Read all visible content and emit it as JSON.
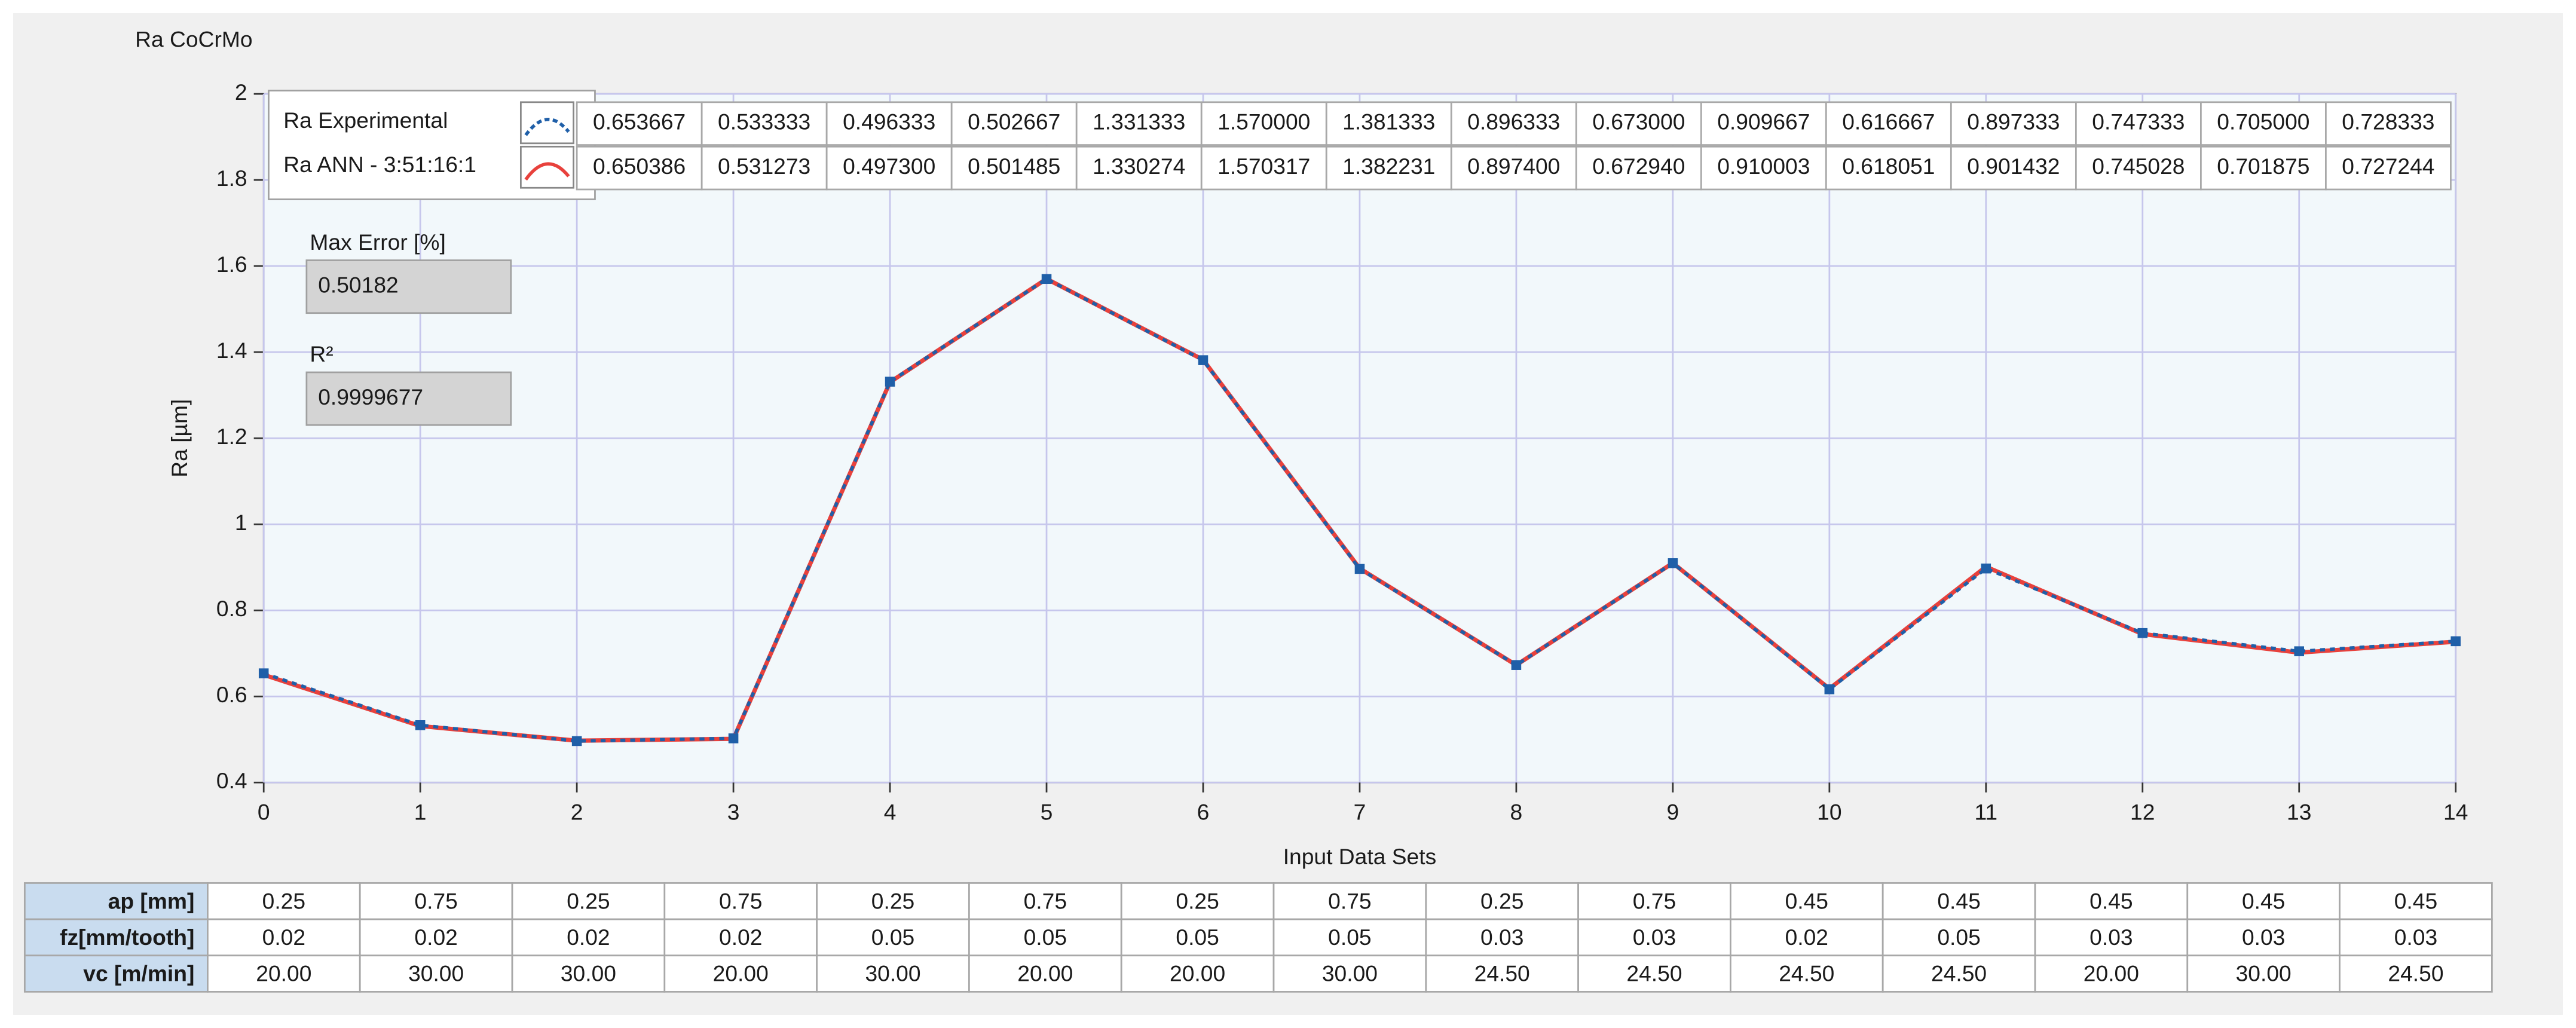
{
  "chart_data": {
    "type": "line",
    "title": "Ra CoCrMo",
    "x_label": "Input Data Sets",
    "y_label": "Ra [µm]",
    "x": [
      0,
      1,
      2,
      3,
      4,
      5,
      6,
      7,
      8,
      9,
      10,
      11,
      12,
      13,
      14
    ],
    "series": [
      {
        "name": "Ra Experimental",
        "color": "#1f5fa8",
        "values": [
          0.653667,
          0.533333,
          0.496333,
          0.502667,
          1.331333,
          1.57,
          1.381333,
          0.896333,
          0.673,
          0.909667,
          0.616667,
          0.897333,
          0.747333,
          0.705,
          0.728333
        ],
        "value_labels": [
          "0.653667",
          "0.533333",
          "0.496333",
          "0.502667",
          "1.331333",
          "1.570000",
          "1.381333",
          "0.896333",
          "0.673000",
          "0.909667",
          "0.616667",
          "0.897333",
          "0.747333",
          "0.705000",
          "0.728333"
        ]
      },
      {
        "name": "Ra ANN - 3:51:16:1",
        "color": "#e8413c",
        "values": [
          0.650386,
          0.531273,
          0.4973,
          0.501485,
          1.330274,
          1.570317,
          1.382231,
          0.8974,
          0.67294,
          0.910003,
          0.618051,
          0.901432,
          0.745028,
          0.701875,
          0.727244
        ],
        "value_labels": [
          "0.650386",
          "0.531273",
          "0.497300",
          "0.501485",
          "1.330274",
          "1.570317",
          "1.382231",
          "0.897400",
          "0.672940",
          "0.910003",
          "0.618051",
          "0.901432",
          "0.745028",
          "0.701875",
          "0.727244"
        ]
      }
    ],
    "xlim": [
      0,
      14
    ],
    "xticks": [
      0,
      1,
      2,
      3,
      4,
      5,
      6,
      7,
      8,
      9,
      10,
      11,
      12,
      13,
      14
    ],
    "ylim": [
      0.4,
      2
    ],
    "yticks": [
      0.4,
      0.6,
      0.8,
      1,
      1.2,
      1.4,
      1.6,
      1.8,
      2
    ],
    "grid": true
  },
  "indicators": [
    {
      "label": "Max Error [%]",
      "value": "0.50182"
    },
    {
      "label": "R²",
      "value": "0.9999677"
    }
  ],
  "input_table": {
    "rows": [
      {
        "label": "ap [mm]",
        "values": [
          "0.25",
          "0.75",
          "0.25",
          "0.75",
          "0.25",
          "0.75",
          "0.25",
          "0.75",
          "0.25",
          "0.75",
          "0.45",
          "0.45",
          "0.45",
          "0.45",
          "0.45"
        ]
      },
      {
        "label": "fz[mm/tooth]",
        "values": [
          "0.02",
          "0.02",
          "0.02",
          "0.02",
          "0.05",
          "0.05",
          "0.05",
          "0.05",
          "0.03",
          "0.03",
          "0.02",
          "0.05",
          "0.03",
          "0.03",
          "0.03"
        ]
      },
      {
        "label": "vc [m/min]",
        "values": [
          "20.00",
          "30.00",
          "30.00",
          "20.00",
          "30.00",
          "20.00",
          "20.00",
          "30.00",
          "24.50",
          "24.50",
          "24.50",
          "24.50",
          "20.00",
          "30.00",
          "24.50"
        ]
      }
    ]
  }
}
